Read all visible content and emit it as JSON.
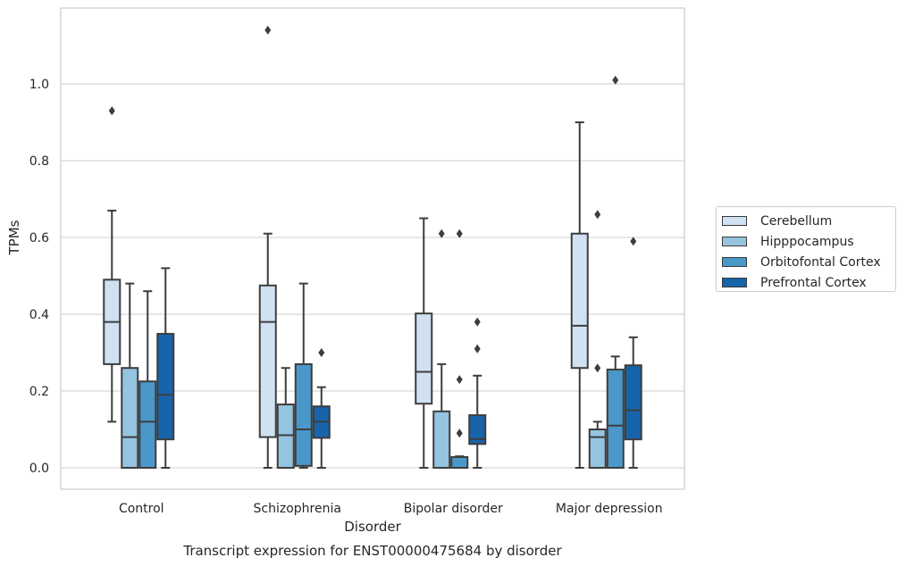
{
  "chart_data": {
    "type": "box",
    "title": "Transcript expression for ENST00000475684 by disorder",
    "xlabel": "Disorder",
    "ylabel": "TPMs",
    "ylim": [
      -0.055,
      1.2
    ],
    "yticks": [
      0.0,
      0.2,
      0.4,
      0.6,
      0.8,
      1.0
    ],
    "ytick_labels": [
      "0.0",
      "0.2",
      "0.4",
      "0.6",
      "0.8",
      "1.0"
    ],
    "grid": "horizontal",
    "legend_position": "right",
    "categories": [
      "Control",
      "Schizophrenia",
      "Bipolar disorder",
      "Major depression"
    ],
    "series": [
      {
        "name": "Cerebellum",
        "color": "#d0e1f2",
        "boxes": [
          {
            "min": 0.12,
            "q1": 0.27,
            "median": 0.38,
            "q3": 0.49,
            "max": 0.67,
            "outliers": [
              0.93
            ]
          },
          {
            "min": 0.0,
            "q1": 0.08,
            "median": 0.38,
            "q3": 0.475,
            "max": 0.61,
            "outliers": [
              1.14
            ]
          },
          {
            "min": 0.0,
            "q1": 0.167,
            "median": 0.25,
            "q3": 0.402,
            "max": 0.65,
            "outliers": []
          },
          {
            "min": 0.0,
            "q1": 0.26,
            "median": 0.37,
            "q3": 0.61,
            "max": 0.9,
            "outliers": []
          }
        ]
      },
      {
        "name": "Hipppocampus",
        "color": "#94c4df",
        "boxes": [
          {
            "min": 0.0,
            "q1": 0.0,
            "median": 0.08,
            "q3": 0.26,
            "max": 0.48,
            "outliers": []
          },
          {
            "min": 0.0,
            "q1": 0.0,
            "median": 0.085,
            "q3": 0.165,
            "max": 0.26,
            "outliers": []
          },
          {
            "min": 0.0,
            "q1": 0.0,
            "median": 0.0,
            "q3": 0.147,
            "max": 0.27,
            "outliers": [
              0.61
            ]
          },
          {
            "min": 0.0,
            "q1": 0.0,
            "median": 0.08,
            "q3": 0.1,
            "max": 0.12,
            "outliers": [
              0.26,
              0.66
            ]
          }
        ]
      },
      {
        "name": "Orbitofontal Cortex",
        "color": "#4a98c9",
        "boxes": [
          {
            "min": 0.0,
            "q1": 0.0,
            "median": 0.12,
            "q3": 0.225,
            "max": 0.46,
            "outliers": []
          },
          {
            "min": 0.0,
            "q1": 0.005,
            "median": 0.1,
            "q3": 0.27,
            "max": 0.48,
            "outliers": []
          },
          {
            "min": 0.0,
            "q1": 0.0,
            "median": 0.0,
            "q3": 0.028,
            "max": 0.03,
            "outliers": [
              0.09,
              0.23,
              0.61
            ]
          },
          {
            "min": 0.0,
            "q1": 0.0,
            "median": 0.11,
            "q3": 0.256,
            "max": 0.29,
            "outliers": [
              1.01
            ]
          }
        ]
      },
      {
        "name": "Prefrontal Cortex",
        "color": "#1764ab",
        "boxes": [
          {
            "min": 0.0,
            "q1": 0.074,
            "median": 0.19,
            "q3": 0.349,
            "max": 0.52,
            "outliers": []
          },
          {
            "min": 0.0,
            "q1": 0.078,
            "median": 0.12,
            "q3": 0.16,
            "max": 0.21,
            "outliers": [
              0.3
            ]
          },
          {
            "min": 0.0,
            "q1": 0.062,
            "median": 0.075,
            "q3": 0.137,
            "max": 0.24,
            "outliers": [
              0.31,
              0.38
            ]
          },
          {
            "min": 0.0,
            "q1": 0.074,
            "median": 0.15,
            "q3": 0.267,
            "max": 0.34,
            "outliers": [
              0.59
            ]
          }
        ]
      }
    ]
  }
}
